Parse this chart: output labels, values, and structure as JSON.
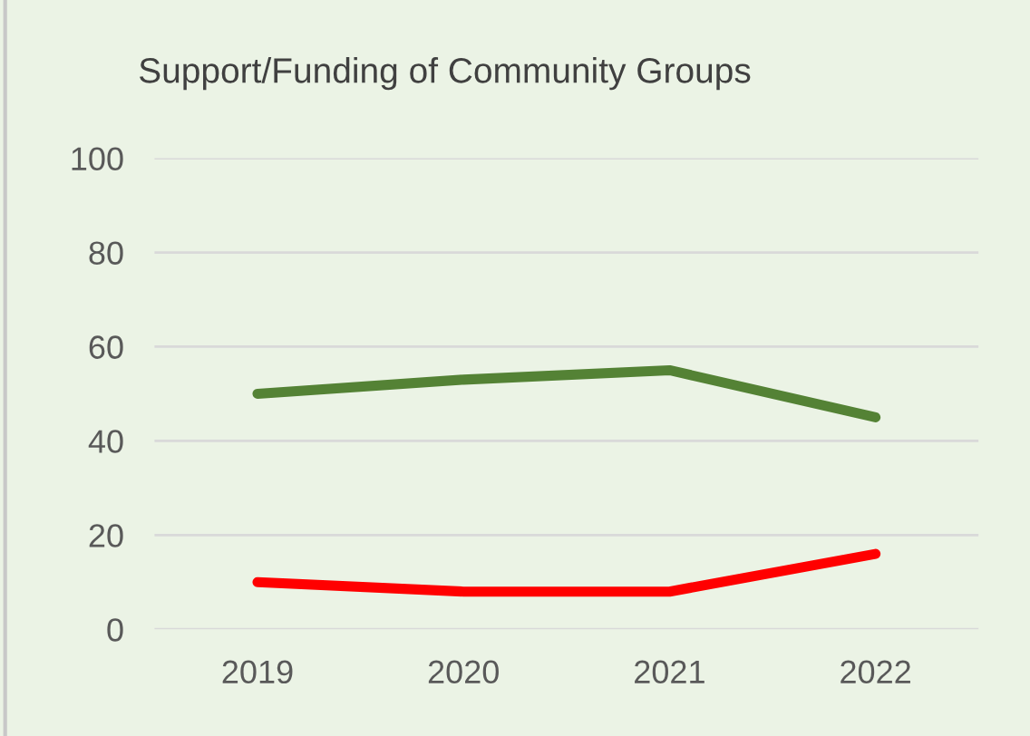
{
  "chart_data": {
    "type": "line",
    "title": "Support/Funding of Community Groups",
    "categories": [
      "2019",
      "2020",
      "2021",
      "2022"
    ],
    "series": [
      {
        "color": "#548235",
        "values": [
          50,
          53,
          55,
          45
        ]
      },
      {
        "color": "#ff0000",
        "values": [
          10,
          8,
          8,
          16
        ]
      }
    ],
    "ylim": [
      0,
      100
    ],
    "yticks": [
      0,
      20,
      40,
      60,
      80,
      100
    ],
    "grid": "y",
    "legend": false,
    "marker": "none",
    "line_style": "solid"
  }
}
